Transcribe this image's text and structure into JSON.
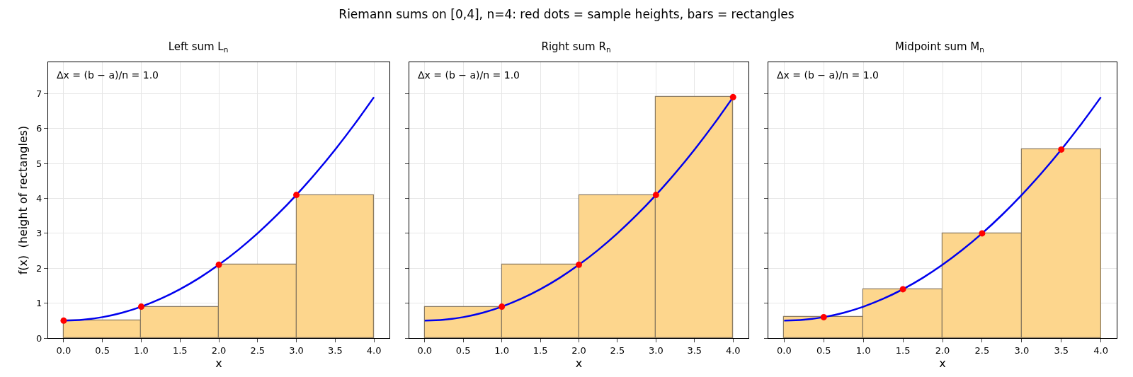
{
  "chart_data": [
    {
      "type": "histogram",
      "title": "Left sum L$_{n}$",
      "xlabel": "x",
      "ylabel": "f(x)  (height of rectangles)",
      "annotations": [
        "Riemann sums on [0,4], n=4: red dots = sample heights, bars = rectangles",
        "Δx = (b − a)/n = 1.0"
      ],
      "xlim": [
        -0.2,
        4.2
      ],
      "ylim": [
        0,
        7.9
      ],
      "xticks": [
        {
          "value": 0,
          "label": "0.0"
        },
        {
          "value": 0.5,
          "label": "0.5"
        },
        {
          "value": 1,
          "label": "1.0"
        },
        {
          "value": 1.5,
          "label": "1.5"
        },
        {
          "value": 2,
          "label": "2.0"
        },
        {
          "value": 2.5,
          "label": "2.5"
        },
        {
          "value": 3,
          "label": "3.0"
        },
        {
          "value": 3.5,
          "label": "3.5"
        },
        {
          "value": 4,
          "label": "4.0"
        }
      ],
      "yticks": [
        0,
        1,
        2,
        3,
        4,
        5,
        6,
        7
      ],
      "grid": true,
      "series": [
        {
          "color": "#fdd68d",
          "bins": [
            0,
            1,
            2,
            3,
            4
          ],
          "values": [
            0.5,
            0.9,
            2.1,
            4.1
          ]
        },
        {
          "type": "line",
          "color": "#0000ee",
          "x": [
            0,
            0.25,
            0.5,
            0.75,
            1,
            1.25,
            1.5,
            1.75,
            2,
            2.25,
            2.5,
            2.75,
            3,
            3.25,
            3.5,
            3.75,
            4
          ],
          "values": [
            0.5,
            0.525,
            0.6,
            0.725,
            0.9,
            1.125,
            1.4,
            1.725,
            2.1,
            2.525,
            3.0,
            3.525,
            4.1,
            4.725,
            5.4,
            6.125,
            6.9
          ]
        },
        {
          "type": "scatter",
          "color": "#ff0000",
          "marker": "circle",
          "x": [
            0,
            1,
            2,
            3
          ],
          "values": [
            0.5,
            0.9,
            2.1,
            4.1
          ]
        }
      ]
    },
    {
      "type": "histogram",
      "title": "Right sum R$_{n}$",
      "xlabel": "x",
      "annotations": [
        "Δx = (b − a)/n = 1.0"
      ],
      "tick_labels": "x",
      "xlim": [
        -0.2,
        4.2
      ],
      "ylim": [
        0,
        7.9
      ],
      "xticks": [
        {
          "value": 0,
          "label": "0.0"
        },
        {
          "value": 0.5,
          "label": "0.5"
        },
        {
          "value": 1,
          "label": "1.0"
        },
        {
          "value": 1.5,
          "label": "1.5"
        },
        {
          "value": 2,
          "label": "2.0"
        },
        {
          "value": 2.5,
          "label": "2.5"
        },
        {
          "value": 3,
          "label": "3.0"
        },
        {
          "value": 3.5,
          "label": "3.5"
        },
        {
          "value": 4,
          "label": "4.0"
        }
      ],
      "yticks": [
        0,
        1,
        2,
        3,
        4,
        5,
        6,
        7
      ],
      "grid": true,
      "series": [
        {
          "color": "#fdd68d",
          "bins": [
            0,
            1,
            2,
            3,
            4
          ],
          "values": [
            0.9,
            2.1,
            4.1,
            6.9
          ]
        },
        {
          "type": "line",
          "color": "#0000ee",
          "x": [
            0,
            0.25,
            0.5,
            0.75,
            1,
            1.25,
            1.5,
            1.75,
            2,
            2.25,
            2.5,
            2.75,
            3,
            3.25,
            3.5,
            3.75,
            4
          ],
          "values": [
            0.5,
            0.525,
            0.6,
            0.725,
            0.9,
            1.125,
            1.4,
            1.725,
            2.1,
            2.525,
            3.0,
            3.525,
            4.1,
            4.725,
            5.4,
            6.125,
            6.9
          ]
        },
        {
          "type": "scatter",
          "color": "#ff0000",
          "marker": "circle",
          "x": [
            1,
            2,
            3,
            4
          ],
          "values": [
            0.9,
            2.1,
            4.1,
            6.9
          ]
        }
      ]
    },
    {
      "type": "histogram",
      "title": "Midpoint sum M$_{n}$",
      "xlabel": "x",
      "annotations": [
        "Δx = (b − a)/n = 1.0"
      ],
      "tick_labels": "x",
      "xlim": [
        -0.2,
        4.2
      ],
      "ylim": [
        0,
        7.9
      ],
      "xticks": [
        {
          "value": 0,
          "label": "0.0"
        },
        {
          "value": 0.5,
          "label": "0.5"
        },
        {
          "value": 1,
          "label": "1.0"
        },
        {
          "value": 1.5,
          "label": "1.5"
        },
        {
          "value": 2,
          "label": "2.0"
        },
        {
          "value": 2.5,
          "label": "2.5"
        },
        {
          "value": 3,
          "label": "3.0"
        },
        {
          "value": 3.5,
          "label": "3.5"
        },
        {
          "value": 4,
          "label": "4.0"
        }
      ],
      "yticks": [
        0,
        1,
        2,
        3,
        4,
        5,
        6,
        7
      ],
      "grid": true,
      "series": [
        {
          "color": "#fdd68d",
          "bins": [
            0,
            1,
            2,
            3,
            4
          ],
          "values": [
            0.6,
            1.4,
            3.0,
            5.4
          ]
        },
        {
          "type": "line",
          "color": "#0000ee",
          "x": [
            0,
            0.25,
            0.5,
            0.75,
            1,
            1.25,
            1.5,
            1.75,
            2,
            2.25,
            2.5,
            2.75,
            3,
            3.25,
            3.5,
            3.75,
            4
          ],
          "values": [
            0.5,
            0.525,
            0.6,
            0.725,
            0.9,
            1.125,
            1.4,
            1.725,
            2.1,
            2.525,
            3.0,
            3.525,
            4.1,
            4.725,
            5.4,
            6.125,
            6.9
          ]
        },
        {
          "type": "scatter",
          "color": "#ff0000",
          "marker": "circle",
          "x": [
            0.5,
            1.5,
            2.5,
            3.5
          ],
          "values": [
            0.6,
            1.4,
            3.0,
            5.4
          ]
        }
      ]
    }
  ]
}
